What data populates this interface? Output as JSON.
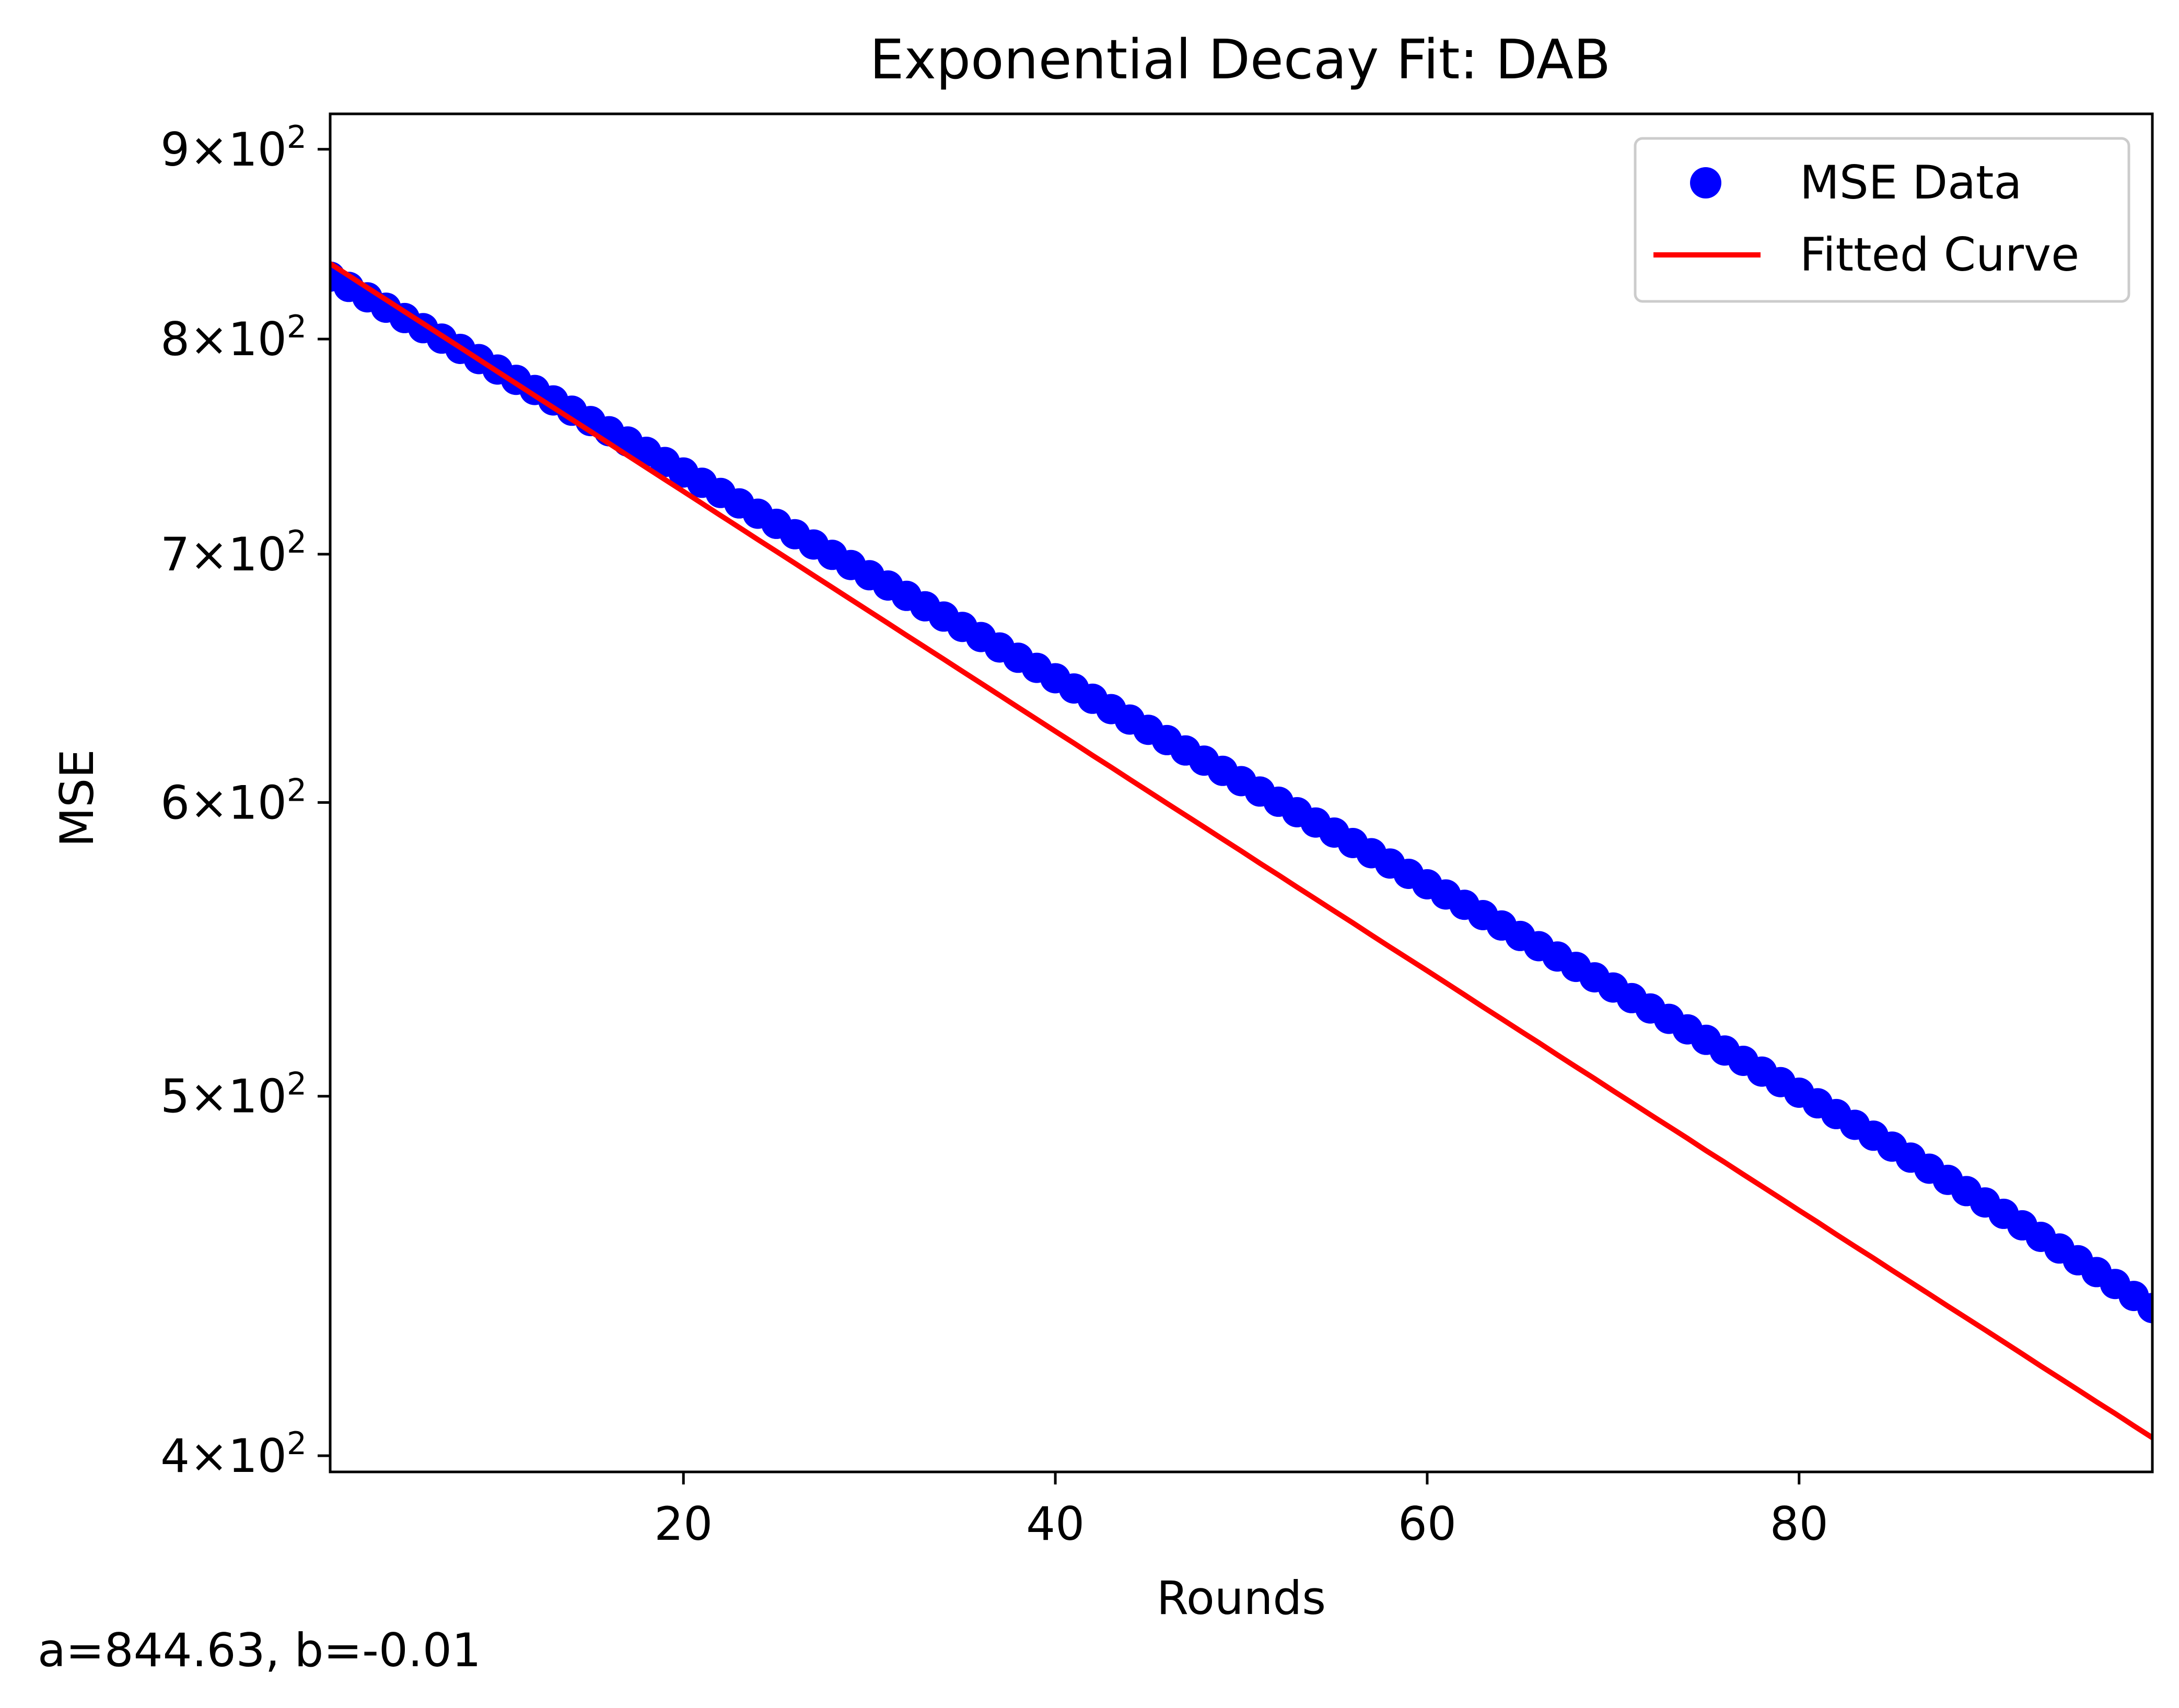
{
  "chart_data": {
    "type": "scatter",
    "title": "Exponential Decay Fit: DAB",
    "xlabel": "Rounds",
    "ylabel": "MSE",
    "xlim": [
      1,
      99
    ],
    "ylim": [
      396,
      920
    ],
    "yscale": "log",
    "grid": false,
    "legend_position": "top-right",
    "x_ticks": [
      {
        "value": 20,
        "label": "20"
      },
      {
        "value": 40,
        "label": "40"
      },
      {
        "value": 60,
        "label": "60"
      },
      {
        "value": 80,
        "label": "80"
      }
    ],
    "y_ticks": [
      {
        "value": 400,
        "mantissa": "4",
        "base": "10",
        "exp": "2"
      },
      {
        "value": 500,
        "mantissa": "5",
        "base": "10",
        "exp": "2"
      },
      {
        "value": 600,
        "mantissa": "6",
        "base": "10",
        "exp": "2"
      },
      {
        "value": 700,
        "mantissa": "7",
        "base": "10",
        "exp": "2"
      },
      {
        "value": 800,
        "mantissa": "8",
        "base": "10",
        "exp": "2"
      },
      {
        "value": 900,
        "mantissa": "9",
        "base": "10",
        "exp": "2"
      }
    ],
    "series": [
      {
        "name": "MSE Data",
        "kind": "scatter",
        "color": "#0000ff",
        "x": [
          1,
          2,
          3,
          4,
          5,
          6,
          7,
          8,
          9,
          10,
          11,
          12,
          13,
          14,
          15,
          16,
          17,
          18,
          19,
          20,
          21,
          22,
          23,
          24,
          25,
          26,
          27,
          28,
          29,
          30,
          31,
          32,
          33,
          34,
          35,
          36,
          37,
          38,
          39,
          40,
          41,
          42,
          43,
          44,
          45,
          46,
          47,
          48,
          49,
          50,
          51,
          52,
          53,
          54,
          55,
          56,
          57,
          58,
          59,
          60,
          61,
          62,
          63,
          64,
          65,
          66,
          67,
          68,
          69,
          70,
          71,
          72,
          73,
          74,
          75,
          76,
          77,
          78,
          79,
          80,
          81,
          82,
          83,
          84,
          85,
          86,
          87,
          88,
          89,
          90,
          91,
          92,
          93,
          94,
          95,
          96,
          97,
          98,
          99
        ],
        "y": [
          831.6,
          826.3,
          821.0,
          815.7,
          810.5,
          805.4,
          800.2,
          795.1,
          790.1,
          785.0,
          780.0,
          775.1,
          770.1,
          765.2,
          760.3,
          755.5,
          750.7,
          745.9,
          741.2,
          736.4,
          731.7,
          727.1,
          722.4,
          717.8,
          713.3,
          708.7,
          704.2,
          699.7,
          695.3,
          690.9,
          686.5,
          682.1,
          677.7,
          673.4,
          669.1,
          664.9,
          660.6,
          656.4,
          652.3,
          648.1,
          644.0,
          639.9,
          635.8,
          631.7,
          627.7,
          623.7,
          619.7,
          615.8,
          611.9,
          608.0,
          604.1,
          600.3,
          596.4,
          592.6,
          588.9,
          585.1,
          581.4,
          577.7,
          574.0,
          570.3,
          566.7,
          563.1,
          559.5,
          555.9,
          552.3,
          548.8,
          545.3,
          541.8,
          538.3,
          534.9,
          531.4,
          528.0,
          524.6,
          521.2,
          517.8,
          514.4,
          511.1,
          507.7,
          504.4,
          501.1,
          497.8,
          494.5,
          491.2,
          487.9,
          484.6,
          481.3,
          478.0,
          474.7,
          471.4,
          468.1,
          464.8,
          461.5,
          458.2,
          454.9,
          451.6,
          448.3,
          445.0,
          441.7,
          438.4
        ]
      },
      {
        "name": "Fitted Curve",
        "kind": "line",
        "color": "#ff0000",
        "x": [
          1,
          2,
          3,
          4,
          5,
          6,
          7,
          8,
          9,
          10,
          11,
          12,
          13,
          14,
          15,
          16,
          17,
          18,
          19,
          20,
          21,
          22,
          23,
          24,
          25,
          26,
          27,
          28,
          29,
          30,
          31,
          32,
          33,
          34,
          35,
          36,
          37,
          38,
          39,
          40,
          41,
          42,
          43,
          44,
          45,
          46,
          47,
          48,
          49,
          50,
          51,
          52,
          53,
          54,
          55,
          56,
          57,
          58,
          59,
          60,
          61,
          62,
          63,
          64,
          65,
          66,
          67,
          68,
          69,
          70,
          71,
          72,
          73,
          74,
          75,
          76,
          77,
          78,
          79,
          80,
          81,
          82,
          83,
          84,
          85,
          86,
          87,
          88,
          89,
          90,
          91,
          92,
          93,
          94,
          95,
          96,
          97,
          98,
          99
        ],
        "y": [
          838.3,
          832.1,
          825.9,
          819.8,
          813.7,
          807.7,
          801.7,
          795.8,
          789.9,
          784.0,
          778.2,
          772.4,
          766.7,
          761.0,
          755.4,
          749.8,
          744.2,
          738.7,
          733.2,
          727.8,
          722.4,
          717.0,
          711.7,
          706.4,
          701.2,
          696.0,
          690.8,
          685.7,
          680.6,
          675.6,
          670.6,
          665.6,
          660.7,
          655.8,
          650.9,
          646.1,
          641.3,
          636.5,
          631.8,
          627.1,
          622.5,
          617.8,
          613.3,
          608.7,
          604.2,
          599.7,
          595.3,
          590.9,
          586.5,
          582.2,
          577.8,
          573.6,
          569.3,
          565.1,
          560.9,
          556.8,
          552.6,
          548.5,
          544.5,
          540.5,
          536.5,
          532.5,
          528.5,
          524.6,
          520.7,
          516.9,
          513.0,
          509.2,
          505.5,
          501.7,
          498.0,
          494.3,
          490.7,
          487.1,
          483.4,
          479.9,
          476.3,
          472.8,
          469.3,
          465.8,
          462.4,
          458.9,
          455.5,
          452.2,
          448.8,
          445.5,
          442.2,
          438.9,
          435.7,
          432.5,
          429.3,
          426.1,
          422.9,
          419.8,
          416.7,
          413.6,
          410.6,
          407.5,
          404.5
        ]
      }
    ],
    "annotation": "a=844.63, b=-0.01"
  }
}
